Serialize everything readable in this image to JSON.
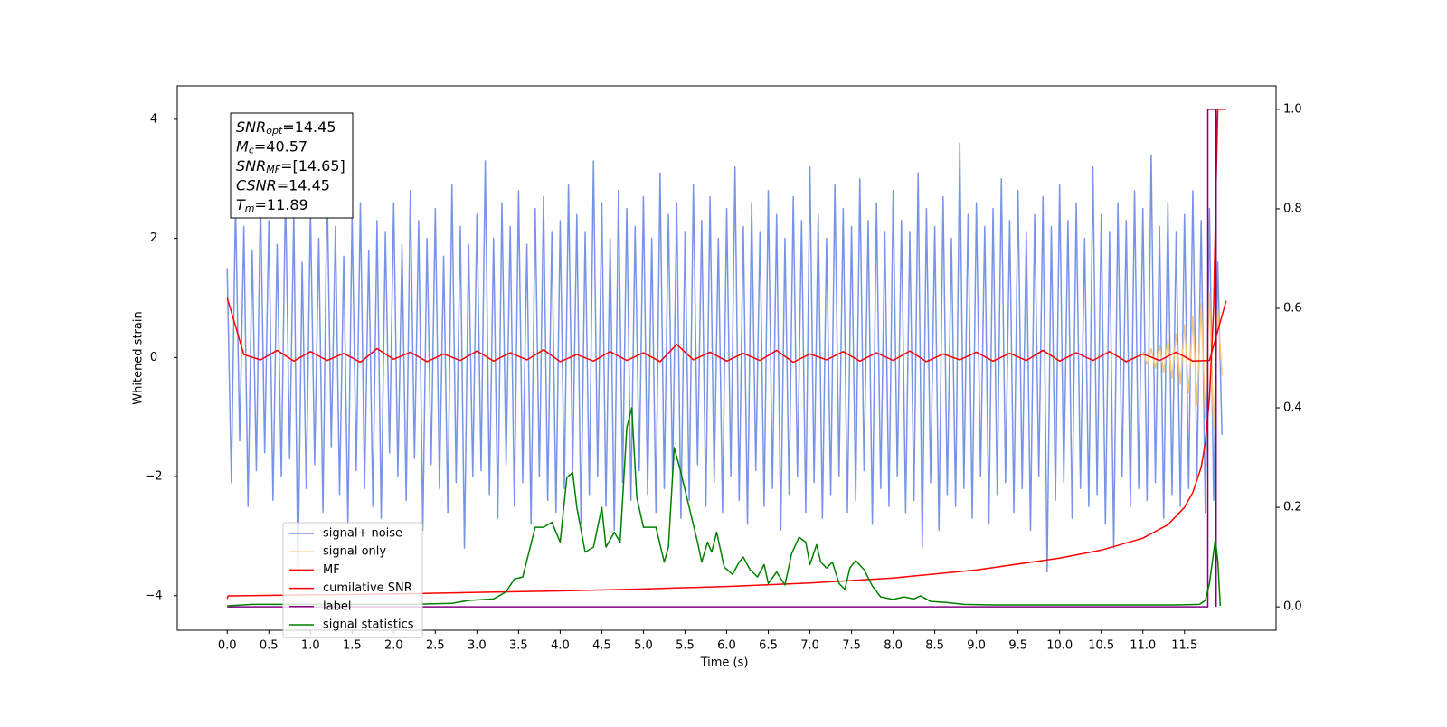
{
  "chart_data": {
    "type": "line",
    "xlabel": "Time (s)",
    "ylabel": "Whitened strain",
    "xlim": [
      -0.6,
      12.6
    ],
    "ylim": [
      -4.58,
      4.56
    ],
    "y2lim": [
      -0.047,
      1.047
    ],
    "xticks": [
      {
        "value": 0,
        "label": "0.0"
      },
      {
        "value": 0.5,
        "label": "0.5"
      },
      {
        "value": 1,
        "label": "1.0"
      },
      {
        "value": 1.5,
        "label": "1.5"
      },
      {
        "value": 2,
        "label": "2.0"
      },
      {
        "value": 2.5,
        "label": "2.5"
      },
      {
        "value": 3,
        "label": "3.0"
      },
      {
        "value": 3.5,
        "label": "3.5"
      },
      {
        "value": 4,
        "label": "4.0"
      },
      {
        "value": 4.5,
        "label": "4.5"
      },
      {
        "value": 5,
        "label": "5.0"
      },
      {
        "value": 5.5,
        "label": "5.5"
      },
      {
        "value": 6,
        "label": "6.0"
      },
      {
        "value": 6.5,
        "label": "6.5"
      },
      {
        "value": 7,
        "label": "7.0"
      },
      {
        "value": 7.5,
        "label": "7.5"
      },
      {
        "value": 8,
        "label": "8.0"
      },
      {
        "value": 8.5,
        "label": "8.5"
      },
      {
        "value": 9,
        "label": "9.0"
      },
      {
        "value": 9.5,
        "label": "9.5"
      },
      {
        "value": 10,
        "label": "10.0"
      },
      {
        "value": 10.5,
        "label": "10.5"
      },
      {
        "value": 11,
        "label": "11.0"
      },
      {
        "value": 11.5,
        "label": "11.5"
      }
    ],
    "yticks": [
      {
        "value": -4,
        "label": "−4"
      },
      {
        "value": -2,
        "label": "−2"
      },
      0,
      2,
      4
    ],
    "y2ticks": [
      {
        "value": 0,
        "label": "0.0"
      },
      {
        "value": 0.2,
        "label": "0.2"
      },
      {
        "value": 0.4,
        "label": "0.4"
      },
      {
        "value": 0.6,
        "label": "0.6"
      },
      {
        "value": 0.8,
        "label": "0.8"
      },
      {
        "value": 1,
        "label": "1.0"
      }
    ],
    "legend": "lower left",
    "annotation": [
      {
        "symbol": "SNR",
        "subscript": "opt",
        "text": "=14.45"
      },
      {
        "symbol": "M",
        "subscript": "c",
        "text": "=40.57"
      },
      {
        "symbol": "SNR",
        "subscript": "MF",
        "text": "=[14.65]"
      },
      {
        "symbol": "CSNR",
        "text": "=14.45"
      },
      {
        "symbol": "T",
        "subscript": "m",
        "text": "=11.89"
      }
    ],
    "series": [
      {
        "name": "signal+ noise",
        "color": "#7894e6",
        "x": [
          0,
          0.05,
          0.1,
          0.15,
          0.2,
          0.25,
          0.3,
          0.35,
          0.4,
          0.45,
          0.5,
          0.55,
          0.6,
          0.65,
          0.7,
          0.75,
          0.8,
          0.85,
          0.9,
          0.95,
          1,
          1.05,
          1.1,
          1.15,
          1.2,
          1.25,
          1.3,
          1.35,
          1.4,
          1.45,
          1.5,
          1.55,
          1.6,
          1.65,
          1.7,
          1.75,
          1.8,
          1.85,
          1.9,
          1.95,
          2,
          2.05,
          2.1,
          2.15,
          2.2,
          2.25,
          2.3,
          2.35,
          2.4,
          2.45,
          2.5,
          2.55,
          2.6,
          2.65,
          2.7,
          2.75,
          2.8,
          2.85,
          2.9,
          2.95,
          3,
          3.05,
          3.1,
          3.15,
          3.2,
          3.25,
          3.3,
          3.35,
          3.4,
          3.45,
          3.5,
          3.55,
          3.6,
          3.65,
          3.7,
          3.75,
          3.8,
          3.85,
          3.9,
          3.95,
          4,
          4.05,
          4.1,
          4.15,
          4.2,
          4.25,
          4.3,
          4.35,
          4.4,
          4.45,
          4.5,
          4.55,
          4.6,
          4.65,
          4.7,
          4.75,
          4.8,
          4.85,
          4.9,
          4.95,
          5,
          5.05,
          5.1,
          5.15,
          5.2,
          5.25,
          5.3,
          5.35,
          5.4,
          5.45,
          5.5,
          5.55,
          5.6,
          5.65,
          5.7,
          5.75,
          5.8,
          5.85,
          5.9,
          5.95,
          6,
          6.05,
          6.1,
          6.15,
          6.2,
          6.25,
          6.3,
          6.35,
          6.4,
          6.45,
          6.5,
          6.55,
          6.6,
          6.65,
          6.7,
          6.75,
          6.8,
          6.85,
          6.9,
          6.95,
          7,
          7.05,
          7.1,
          7.15,
          7.2,
          7.25,
          7.3,
          7.35,
          7.4,
          7.45,
          7.5,
          7.55,
          7.6,
          7.65,
          7.7,
          7.75,
          7.8,
          7.85,
          7.9,
          7.95,
          8,
          8.05,
          8.1,
          8.15,
          8.2,
          8.25,
          8.3,
          8.35,
          8.4,
          8.45,
          8.5,
          8.55,
          8.6,
          8.65,
          8.7,
          8.75,
          8.8,
          8.85,
          8.9,
          8.95,
          9,
          9.05,
          9.1,
          9.15,
          9.2,
          9.25,
          9.3,
          9.35,
          9.4,
          9.45,
          9.5,
          9.55,
          9.6,
          9.65,
          9.7,
          9.75,
          9.8,
          9.85,
          9.9,
          9.95,
          10,
          10.05,
          10.1,
          10.15,
          10.2,
          10.25,
          10.3,
          10.35,
          10.4,
          10.45,
          10.5,
          10.55,
          10.6,
          10.65,
          10.7,
          10.75,
          10.8,
          10.85,
          10.9,
          10.95,
          11,
          11.05,
          11.1,
          11.15,
          11.2,
          11.25,
          11.3,
          11.35,
          11.4,
          11.45,
          11.5,
          11.55,
          11.6,
          11.65,
          11.7,
          11.75,
          11.8,
          11.85,
          11.9,
          11.95
        ],
        "values": [
          1.5,
          -2.1,
          2.6,
          -1.4,
          2.2,
          -2.5,
          1.8,
          -1.9,
          2.7,
          -1.6,
          2.3,
          -2.4,
          1.9,
          -2.0,
          2.8,
          -1.7,
          2.4,
          -3.7,
          1.6,
          -2.2,
          2.5,
          -1.8,
          2.0,
          -2.6,
          2.9,
          -1.5,
          2.2,
          -2.3,
          1.7,
          -2.8,
          2.4,
          -1.9,
          2.6,
          -2.2,
          1.8,
          -2.5,
          2.3,
          -2.7,
          2.1,
          -1.6,
          2.6,
          -2.0,
          1.9,
          -2.4,
          2.8,
          -1.7,
          2.3,
          -2.9,
          2.0,
          -1.8,
          2.5,
          -2.2,
          1.7,
          -2.6,
          2.9,
          -2.1,
          2.2,
          -3.2,
          1.9,
          -2.0,
          2.4,
          -1.9,
          3.3,
          -2.3,
          2.0,
          -2.7,
          2.6,
          -1.8,
          2.2,
          -2.5,
          2.8,
          -2.1,
          1.9,
          -2.8,
          2.5,
          -2.0,
          2.7,
          -2.4,
          2.1,
          -2.6,
          2.3,
          -2.2,
          2.9,
          -1.9,
          2.4,
          -2.8,
          2.1,
          -2.3,
          3.3,
          -2.0,
          2.6,
          -2.5,
          2.0,
          -2.9,
          2.8,
          -2.1,
          2.5,
          -2.4,
          2.2,
          -1.9,
          2.7,
          -2.3,
          2.0,
          -2.6,
          3.1,
          -2.2,
          2.4,
          -2.0,
          2.6,
          -2.7,
          2.1,
          -2.4,
          2.9,
          -1.8,
          2.3,
          -2.5,
          2.7,
          -2.1,
          2.0,
          -2.6,
          2.5,
          -2.0,
          3.2,
          -2.4,
          2.2,
          -2.8,
          2.6,
          -1.9,
          2.1,
          -2.5,
          2.8,
          -2.2,
          2.4,
          -2.9,
          2.0,
          -2.3,
          2.7,
          -2.0,
          2.3,
          -2.6,
          3.2,
          -2.1,
          2.4,
          -2.7,
          2.0,
          -2.3,
          2.9,
          -2.0,
          2.5,
          -2.6,
          2.2,
          -2.4,
          3.0,
          -1.9,
          2.3,
          -2.8,
          2.6,
          -2.2,
          2.1,
          -2.5,
          2.8,
          -2.0,
          2.3,
          -2.6,
          2.1,
          -2.4,
          3.1,
          -3.2,
          2.5,
          -2.1,
          2.2,
          -2.9,
          2.7,
          -2.3,
          2.0,
          -2.5,
          3.6,
          -2.2,
          2.4,
          -2.7,
          2.6,
          -2.0,
          2.2,
          -2.8,
          2.5,
          -2.3,
          3.0,
          -2.1,
          2.3,
          -2.6,
          2.8,
          -2.2,
          2.1,
          -2.9,
          2.4,
          -2.0,
          2.7,
          -3.6,
          2.2,
          -2.4,
          2.9,
          -2.1,
          2.3,
          -2.7,
          2.6,
          -2.2,
          2.0,
          -2.5,
          3.2,
          -2.3,
          2.4,
          -2.8,
          2.1,
          -3.2,
          2.6,
          -2.0,
          2.3,
          -2.5,
          2.8,
          -2.2,
          2.5,
          -2.4,
          3.4,
          -2.1,
          2.2,
          -2.7,
          2.6,
          -2.3,
          2.1,
          -2.5,
          2.4,
          -2.2,
          2.8,
          -2.0,
          2.3,
          -2.6,
          2.5,
          -2.4,
          1.6,
          -1.3
        ]
      },
      {
        "name": "signal only",
        "color": "#f5c77e",
        "x": [
          11,
          11.05,
          11.1,
          11.15,
          11.2,
          11.25,
          11.3,
          11.35,
          11.4,
          11.45,
          11.5,
          11.55,
          11.6,
          11.65,
          11.7,
          11.75,
          11.8,
          11.85,
          11.9,
          11.95
        ],
        "values": [
          0.1,
          -0.12,
          0.15,
          -0.18,
          0.2,
          -0.25,
          0.3,
          -0.35,
          0.4,
          -0.45,
          0.55,
          -0.6,
          0.7,
          -0.8,
          0.9,
          -1.0,
          1.1,
          -1.2,
          0.8,
          -0.3
        ]
      },
      {
        "name": "MF",
        "color": "#ff0000",
        "x": [
          0,
          0.2,
          0.4,
          0.6,
          0.8,
          1,
          1.2,
          1.4,
          1.6,
          1.8,
          2,
          2.2,
          2.4,
          2.6,
          2.8,
          3,
          3.2,
          3.4,
          3.6,
          3.8,
          4,
          4.2,
          4.4,
          4.6,
          4.8,
          5,
          5.2,
          5.4,
          5.6,
          5.8,
          6,
          6.2,
          6.4,
          6.6,
          6.8,
          7,
          7.2,
          7.4,
          7.6,
          7.8,
          8,
          8.2,
          8.4,
          8.6,
          8.8,
          9,
          9.2,
          9.4,
          9.6,
          9.8,
          10,
          10.2,
          10.4,
          10.6,
          10.8,
          11,
          11.2,
          11.4,
          11.6,
          11.8,
          12
        ],
        "values": [
          1.0,
          0.05,
          -0.04,
          0.12,
          -0.06,
          0.1,
          -0.05,
          0.07,
          -0.08,
          0.15,
          -0.03,
          0.09,
          -0.07,
          0.06,
          -0.05,
          0.11,
          -0.06,
          0.08,
          -0.04,
          0.13,
          -0.07,
          0.05,
          -0.06,
          0.1,
          -0.05,
          0.08,
          -0.07,
          0.22,
          -0.04,
          0.09,
          -0.06,
          0.07,
          -0.05,
          0.12,
          -0.08,
          0.06,
          -0.04,
          0.1,
          -0.06,
          0.08,
          -0.05,
          0.11,
          -0.07,
          0.06,
          -0.04,
          0.09,
          -0.06,
          0.07,
          -0.05,
          0.12,
          -0.06,
          0.08,
          -0.05,
          0.1,
          -0.07,
          0.06,
          -0.05,
          0.09,
          -0.06,
          -0.05,
          0.95
        ]
      },
      {
        "name": "cumilative SNR",
        "color": "#ff0000",
        "axis": "y2",
        "x": [
          0,
          0.01,
          1,
          2,
          3,
          4,
          5,
          6,
          7,
          8,
          9,
          10,
          10.5,
          11,
          11.3,
          11.5,
          11.6,
          11.7,
          11.75,
          11.8,
          11.85,
          11.88,
          11.9,
          12
        ],
        "values": [
          0.016,
          0.022,
          0.024,
          0.026,
          0.029,
          0.032,
          0.036,
          0.041,
          0.048,
          0.058,
          0.074,
          0.098,
          0.114,
          0.138,
          0.165,
          0.2,
          0.23,
          0.28,
          0.33,
          0.42,
          0.6,
          0.85,
          1.0,
          1.0
        ]
      },
      {
        "name": "label",
        "color": "#800080",
        "axis": "y2",
        "x": [
          0,
          11.78,
          11.78,
          11.88,
          11.88
        ],
        "values": [
          0,
          0,
          1,
          1,
          0
        ]
      },
      {
        "name": "signal statistics",
        "color": "#008000",
        "axis": "y2",
        "x": [
          0,
          0.3,
          2.2,
          2.7,
          2.9,
          3.2,
          3.35,
          3.45,
          3.55,
          3.7,
          3.8,
          3.9,
          4.0,
          4.08,
          4.15,
          4.2,
          4.3,
          4.4,
          4.5,
          4.55,
          4.65,
          4.72,
          4.8,
          4.86,
          4.92,
          5.0,
          5.15,
          5.25,
          5.3,
          5.37,
          5.45,
          5.55,
          5.65,
          5.7,
          5.77,
          5.82,
          5.88,
          5.97,
          6.07,
          6.15,
          6.2,
          6.28,
          6.37,
          6.45,
          6.5,
          6.6,
          6.7,
          6.78,
          6.87,
          6.95,
          7.0,
          7.08,
          7.13,
          7.2,
          7.27,
          7.35,
          7.42,
          7.48,
          7.55,
          7.65,
          7.75,
          7.85,
          8.0,
          8.13,
          8.25,
          8.33,
          8.45,
          8.62,
          8.85,
          9.2,
          11.4,
          11.68,
          11.75,
          11.8,
          11.87,
          11.9,
          11.93
        ],
        "values": [
          0.002,
          0.005,
          0.005,
          0.007,
          0.013,
          0.016,
          0.03,
          0.056,
          0.06,
          0.16,
          0.16,
          0.17,
          0.13,
          0.26,
          0.27,
          0.2,
          0.11,
          0.12,
          0.2,
          0.12,
          0.15,
          0.13,
          0.36,
          0.4,
          0.22,
          0.16,
          0.16,
          0.09,
          0.12,
          0.32,
          0.27,
          0.2,
          0.13,
          0.09,
          0.13,
          0.11,
          0.15,
          0.08,
          0.065,
          0.09,
          0.1,
          0.075,
          0.06,
          0.085,
          0.047,
          0.07,
          0.044,
          0.107,
          0.14,
          0.13,
          0.085,
          0.125,
          0.09,
          0.078,
          0.09,
          0.047,
          0.035,
          0.078,
          0.093,
          0.075,
          0.042,
          0.02,
          0.015,
          0.02,
          0.016,
          0.022,
          0.011,
          0.009,
          0.005,
          0.004,
          0.004,
          0.005,
          0.013,
          0.047,
          0.136,
          0.093,
          0.002
        ]
      }
    ]
  }
}
